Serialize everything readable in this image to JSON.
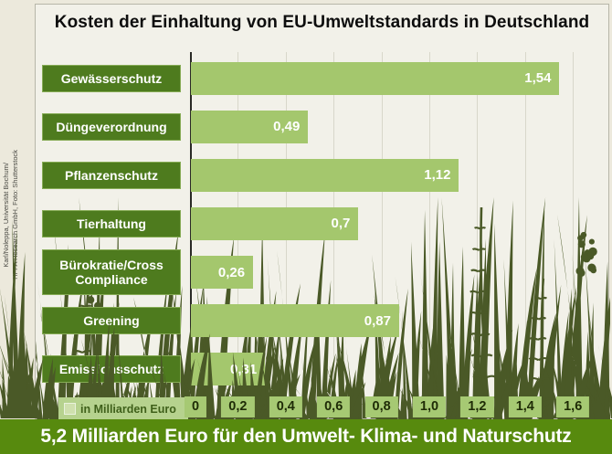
{
  "title": "Kosten der Einhaltung von EU-Umweltstandards in Deutschland",
  "banner": "5,2 Milliarden Euro für den Umwelt- Klima- und Naturschutz",
  "credit": {
    "line1": "Karl/Noleppa, Universität Bochum/",
    "line2": "HFFA Research GmbH, Foto: Shutterstock"
  },
  "legend": {
    "label": "in Milliarden Euro"
  },
  "colors": {
    "bar": "#a4c76d",
    "category_box": "#4e7b1e",
    "tick_box": "#a6c973",
    "banner_bg": "#578a0e",
    "plant_silhouette": "#4a5927",
    "panel_bg": "#f2f1e9"
  },
  "chart_data": {
    "type": "bar",
    "orientation": "horizontal",
    "title": "Kosten der Einhaltung von EU-Umweltstandards in Deutschland",
    "categories": [
      "Gewässerschutz",
      "Düngeverordnung",
      "Pflanzenschutz",
      "Tierhaltung",
      "Bürokratie/Cross Compliance",
      "Greening",
      "Emissionsschutz"
    ],
    "values": [
      1.54,
      0.49,
      1.12,
      0.7,
      0.26,
      0.87,
      0.31
    ],
    "value_labels": [
      "1,54",
      "0,49",
      "1,12",
      "0,7",
      "0,26",
      "0,87",
      "0,31"
    ],
    "unit": "Milliarden Euro",
    "legend": "in Milliarden Euro",
    "xlim": [
      0,
      1.6
    ],
    "x_tick_values": [
      0,
      0.2,
      0.4,
      0.6,
      0.8,
      1.0,
      1.2,
      1.4,
      1.6
    ],
    "x_tick_labels": [
      "0",
      "0,2",
      "0,4",
      "0,6",
      "0,8",
      "1,0",
      "1,2",
      "1,4",
      "1,6"
    ],
    "grid": true,
    "total_note": "5,2 Milliarden Euro für den Umwelt- Klima- und Naturschutz"
  }
}
